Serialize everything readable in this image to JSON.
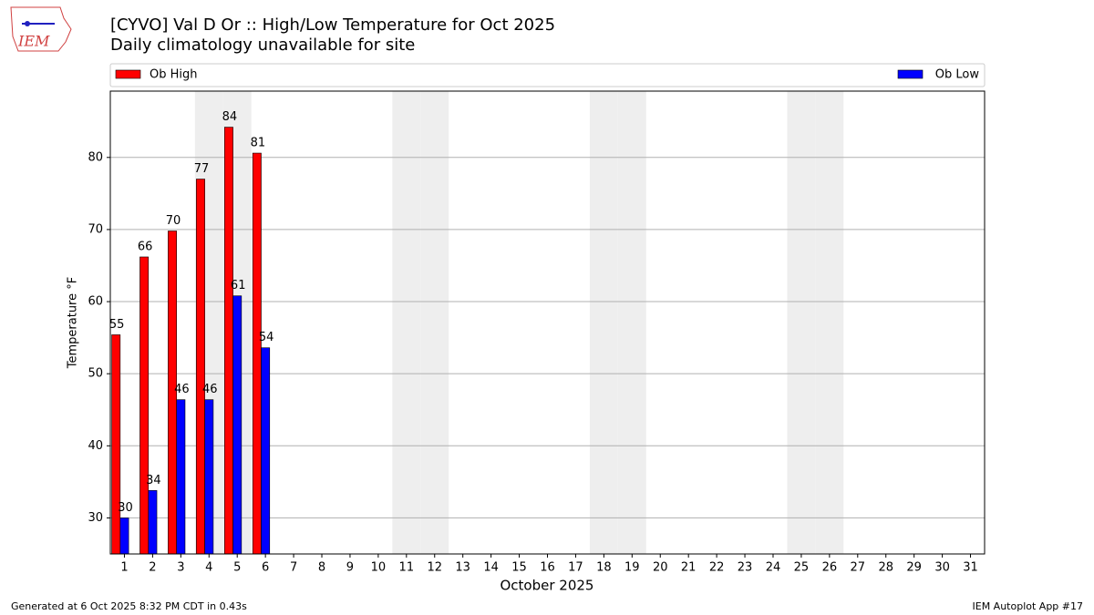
{
  "logo_text": "IEM",
  "footer_left": "Generated at 6 Oct 2025 8:32 PM CDT in 0.43s",
  "footer_right": "IEM Autoplot App #17",
  "chart_data": {
    "type": "bar",
    "title": "[CYVO] Val D Or :: High/Low Temperature for Oct 2025",
    "subtitle": "Daily climatology unavailable for site",
    "x_label": "October 2025",
    "y_label": "Temperature °F",
    "categories": [
      "1",
      "2",
      "3",
      "4",
      "5",
      "6",
      "7",
      "8",
      "9",
      "10",
      "11",
      "12",
      "13",
      "14",
      "15",
      "16",
      "17",
      "18",
      "19",
      "20",
      "21",
      "22",
      "23",
      "24",
      "25",
      "26",
      "27",
      "28",
      "29",
      "30",
      "31"
    ],
    "weekend_days": [
      4,
      5,
      11,
      12,
      18,
      19,
      25,
      26
    ],
    "series": [
      {
        "name": "Ob High",
        "color": "#ff0000",
        "values": [
          55.4,
          66.2,
          69.8,
          77,
          84.2,
          80.6,
          null,
          null,
          null,
          null,
          null,
          null,
          null,
          null,
          null,
          null,
          null,
          null,
          null,
          null,
          null,
          null,
          null,
          null,
          null,
          null,
          null,
          null,
          null,
          null,
          null
        ],
        "value_labels": [
          "55",
          "66",
          "70",
          "77",
          "84",
          "81",
          null,
          null,
          null,
          null,
          null,
          null,
          null,
          null,
          null,
          null,
          null,
          null,
          null,
          null,
          null,
          null,
          null,
          null,
          null,
          null,
          null,
          null,
          null,
          null,
          null
        ]
      },
      {
        "name": "Ob Low",
        "color": "#0000ff",
        "values": [
          30,
          33.8,
          46.4,
          46.4,
          60.8,
          53.6,
          null,
          null,
          null,
          null,
          null,
          null,
          null,
          null,
          null,
          null,
          null,
          null,
          null,
          null,
          null,
          null,
          null,
          null,
          null,
          null,
          null,
          null,
          null,
          null,
          null
        ],
        "value_labels": [
          "30",
          "34",
          "46",
          "46",
          "61",
          "54",
          null,
          null,
          null,
          null,
          null,
          null,
          null,
          null,
          null,
          null,
          null,
          null,
          null,
          null,
          null,
          null,
          null,
          null,
          null,
          null,
          null,
          null,
          null,
          null,
          null
        ]
      }
    ],
    "ylim": [
      25,
      89.2
    ],
    "yticks": [
      30,
      40,
      50,
      60,
      70,
      80
    ],
    "grid": true,
    "legend": "top"
  }
}
